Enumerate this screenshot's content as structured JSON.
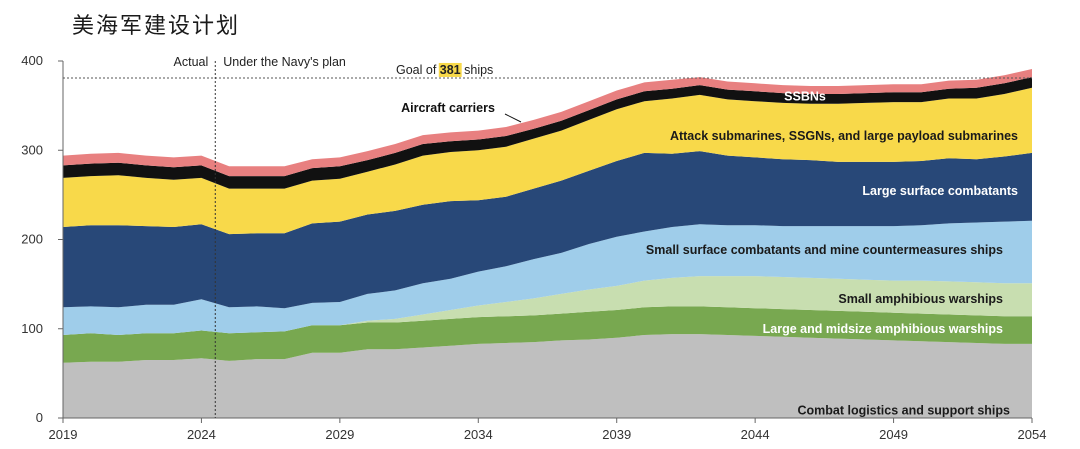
{
  "title": "美海军建设计划",
  "chart_data": {
    "type": "area",
    "stacked": true,
    "x": [
      2019,
      2020,
      2021,
      2022,
      2023,
      2024,
      2025,
      2026,
      2027,
      2028,
      2029,
      2030,
      2031,
      2032,
      2033,
      2034,
      2035,
      2036,
      2037,
      2038,
      2039,
      2040,
      2041,
      2042,
      2043,
      2044,
      2045,
      2046,
      2047,
      2048,
      2049,
      2050,
      2051,
      2052,
      2053,
      2054
    ],
    "x_ticks": [
      2019,
      2024,
      2029,
      2034,
      2039,
      2044,
      2049,
      2054
    ],
    "y_ticks": [
      0,
      100,
      200,
      300,
      400
    ],
    "ylim": [
      0,
      400
    ],
    "xlim": [
      2019,
      2054
    ],
    "region_labels": {
      "actual": "Actual",
      "plan": "Under the Navy's plan"
    },
    "divider_year": 2024.5,
    "goal": {
      "value": 381,
      "prefix": "Goal of ",
      "number": "381",
      "suffix": " ships"
    },
    "series": [
      {
        "name": "Combat logistics and support ships",
        "color": "#bfbfbf",
        "label_color": "#1a1a1a",
        "values": [
          62,
          63,
          63,
          65,
          65,
          67,
          64,
          66,
          66,
          73,
          73,
          77,
          77,
          79,
          81,
          83,
          84,
          85,
          87,
          88,
          90,
          93,
          94,
          94,
          93,
          92,
          91,
          90,
          89,
          88,
          87,
          86,
          85,
          84,
          83,
          83
        ]
      },
      {
        "name": "Large and midsize amphibious warships",
        "color": "#78a850",
        "label_color": "#ffffff",
        "values": [
          31,
          32,
          30,
          30,
          30,
          31,
          31,
          30,
          31,
          31,
          31,
          30,
          30,
          30,
          30,
          30,
          30,
          30,
          30,
          31,
          31,
          31,
          31,
          31,
          31,
          31,
          31,
          31,
          31,
          31,
          31,
          31,
          31,
          31,
          31,
          31
        ]
      },
      {
        "name": "Small amphibious warships",
        "color": "#c8deb0",
        "label_color": "#1a1a1a",
        "values": [
          0,
          0,
          0,
          0,
          0,
          0,
          0,
          0,
          0,
          0,
          0,
          2,
          4,
          7,
          10,
          13,
          16,
          19,
          22,
          25,
          27,
          30,
          32,
          34,
          35,
          36,
          36,
          36,
          36,
          36,
          36,
          37,
          37,
          37,
          37,
          37
        ]
      },
      {
        "name": "Small surface combatants and mine countermeasures ships",
        "color": "#9fcdea",
        "label_color": "#1a1a1a",
        "values": [
          31,
          30,
          31,
          32,
          32,
          35,
          29,
          29,
          26,
          25,
          26,
          30,
          32,
          35,
          35,
          38,
          40,
          44,
          46,
          51,
          55,
          55,
          57,
          58,
          57,
          57,
          57,
          58,
          59,
          60,
          61,
          62,
          65,
          67,
          69,
          70
        ]
      },
      {
        "name": "Large surface combatants",
        "color": "#284878",
        "label_color": "#ffffff",
        "values": [
          90,
          91,
          92,
          88,
          87,
          84,
          82,
          82,
          84,
          89,
          90,
          89,
          89,
          88,
          87,
          80,
          78,
          79,
          81,
          82,
          85,
          88,
          82,
          82,
          78,
          76,
          75,
          74,
          72,
          72,
          72,
          72,
          73,
          71,
          73,
          76
        ]
      },
      {
        "name": "Attack submarines, SSGNs, and large payload submarines",
        "color": "#f8d94a",
        "label_color": "#1a1a1a",
        "values": [
          55,
          55,
          56,
          54,
          53,
          52,
          51,
          50,
          50,
          48,
          48,
          48,
          52,
          55,
          55,
          56,
          56,
          56,
          56,
          57,
          58,
          58,
          62,
          63,
          63,
          63,
          63,
          63,
          65,
          66,
          67,
          66,
          67,
          68,
          70,
          73
        ]
      },
      {
        "name": "SSBNs",
        "color": "#111111",
        "label_color": "#ffffff",
        "values": [
          14,
          14,
          14,
          14,
          14,
          14,
          14,
          14,
          14,
          14,
          14,
          13,
          13,
          13,
          12,
          12,
          12,
          11,
          11,
          11,
          11,
          11,
          11,
          11,
          11,
          11,
          11,
          11,
          11,
          11,
          11,
          11,
          11,
          12,
          12,
          12
        ]
      },
      {
        "name": "Aircraft carriers",
        "color": "#e88080",
        "label_color": "#111111",
        "values": [
          11,
          11,
          11,
          11,
          11,
          11,
          11,
          11,
          11,
          10,
          10,
          10,
          10,
          10,
          10,
          10,
          10,
          10,
          10,
          10,
          10,
          10,
          10,
          9,
          9,
          9,
          9,
          9,
          9,
          9,
          9,
          9,
          9,
          9,
          9,
          9
        ]
      }
    ]
  }
}
